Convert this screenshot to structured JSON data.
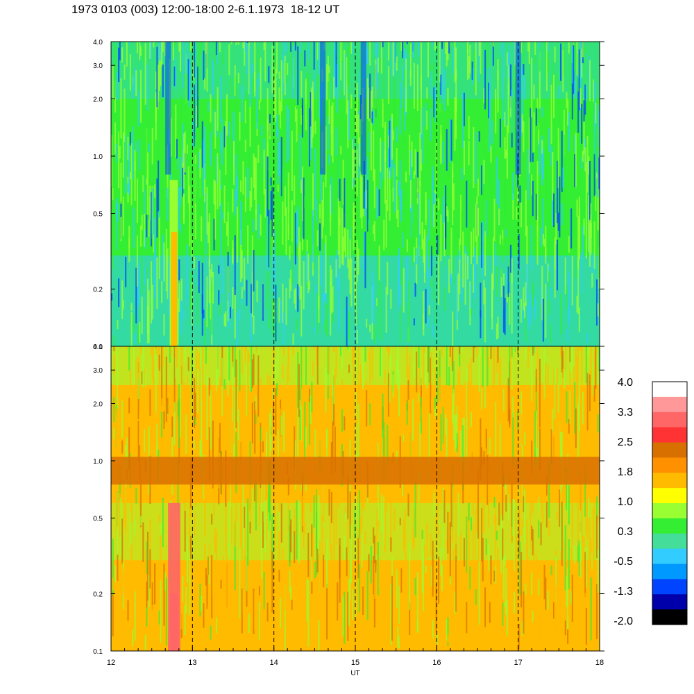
{
  "title": "1973 0103 (003) 12:00-18:00 2-6.1.1973  18-12 UT",
  "chart_data": [
    {
      "type": "heatmap",
      "panel": "upper",
      "xlabel": "",
      "ylabel": "",
      "xlim": [
        12,
        18
      ],
      "ylim": [
        0.1,
        4.0
      ],
      "yscale": "log",
      "y_ticks": [
        "0.1",
        "0.2",
        "0.5",
        "1.0",
        "2.0",
        "3.0",
        "4.0"
      ],
      "y_tick_values": [
        0.1,
        0.2,
        0.5,
        1.0,
        2.0,
        3.0,
        4.0
      ],
      "vertical_dashed_lines_at": [
        13,
        14,
        15,
        16,
        17
      ],
      "dominant_levels": [
        0.3,
        -0.5,
        1.0
      ],
      "dark_streaks_at": [
        12.7,
        14.6,
        15.1,
        17.0
      ],
      "bright_band": {
        "x": [
          12.72,
          12.82
        ],
        "level": 1.8
      }
    },
    {
      "type": "heatmap",
      "panel": "lower",
      "xlabel": "UT",
      "ylabel": "",
      "xlim": [
        12,
        18
      ],
      "ylim": [
        0.1,
        4.0
      ],
      "yscale": "log",
      "x_ticks": [
        "12",
        "13",
        "14",
        "15",
        "16",
        "17",
        "18"
      ],
      "x_tick_values": [
        12,
        13,
        14,
        15,
        16,
        17,
        18
      ],
      "y_ticks": [
        "0.1",
        "0.2",
        "0.5",
        "1.0",
        "2.0",
        "3.0",
        "4.0"
      ],
      "y_tick_values": [
        0.1,
        0.2,
        0.5,
        1.0,
        2.0,
        3.0,
        4.0
      ],
      "vertical_dashed_lines_at": [
        13,
        14,
        15,
        16,
        17
      ],
      "dominant_levels": [
        1.8,
        1.0,
        2.5
      ],
      "horizontal_band": {
        "y": [
          0.75,
          1.05
        ],
        "level": 2.5
      },
      "hot_streak": {
        "x": [
          12.7,
          12.85
        ],
        "level": 3.3
      }
    }
  ],
  "colorbar": {
    "labels": [
      "4.0",
      "3.3",
      "2.5",
      "1.8",
      "1.0",
      "0.3",
      "-0.5",
      "-1.3",
      "-2.0"
    ],
    "colors_top_to_bottom": [
      "#ffffff",
      "#ff9999",
      "#ff6666",
      "#ff3333",
      "#d87000",
      "#ff9000",
      "#ffbb00",
      "#ffff00",
      "#99ff33",
      "#33ee33",
      "#44dd99",
      "#33ccff",
      "#0099ff",
      "#0044ff",
      "#0000aa",
      "#000000"
    ]
  }
}
